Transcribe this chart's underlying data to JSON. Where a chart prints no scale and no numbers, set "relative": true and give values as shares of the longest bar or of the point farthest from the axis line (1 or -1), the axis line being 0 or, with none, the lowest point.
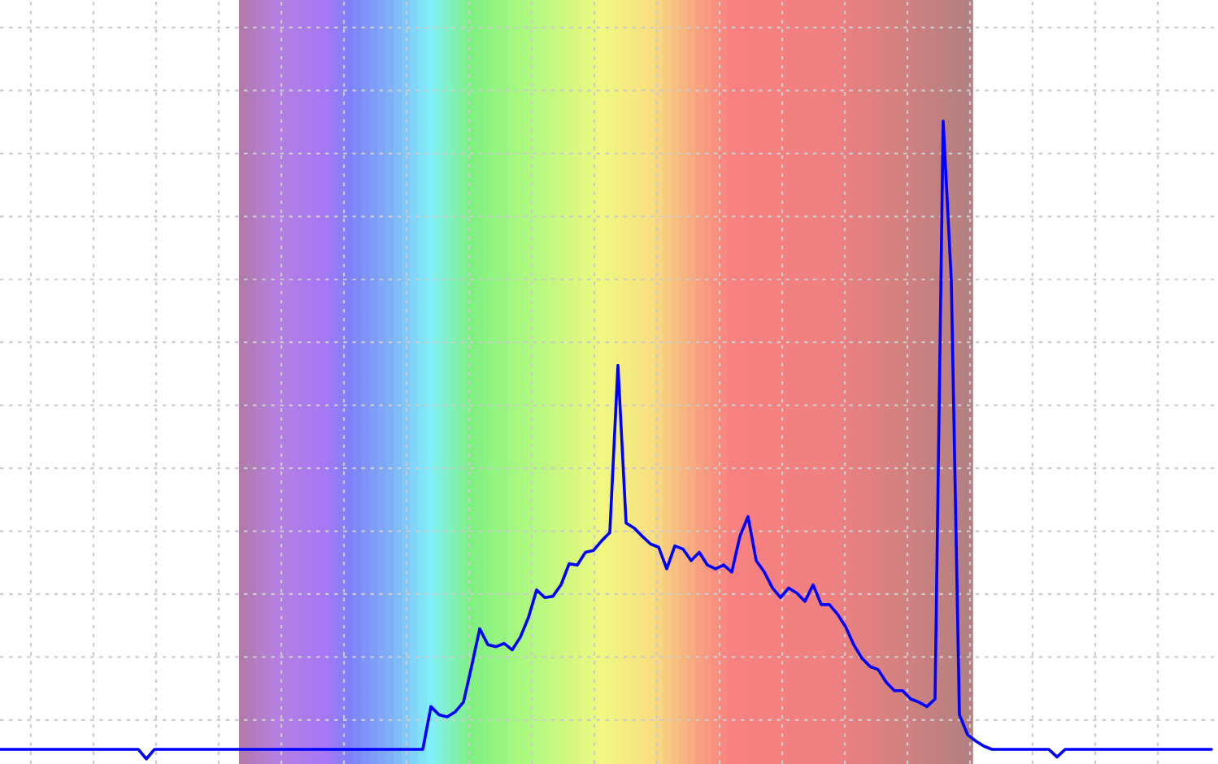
{
  "chart_data": {
    "type": "line",
    "relative": true,
    "grid": true,
    "categories": [
      null,
      null,
      null,
      null,
      null,
      null,
      null,
      null,
      null,
      null,
      null,
      null,
      null,
      null,
      null,
      null,
      null,
      null,
      null,
      null,
      null,
      null,
      null,
      null,
      null,
      null,
      null,
      null,
      null,
      null,
      null,
      null,
      null,
      null,
      null,
      null,
      null,
      null,
      null,
      null,
      null,
      null,
      null,
      null,
      null,
      null,
      null,
      null,
      null,
      null,
      null,
      null,
      null,
      null,
      null,
      null,
      null,
      null,
      null,
      null,
      null,
      null,
      null,
      null,
      null,
      null,
      null,
      null,
      null,
      null,
      null,
      null,
      null,
      null,
      null,
      null,
      null,
      null,
      null,
      null,
      null,
      null,
      null,
      null,
      null,
      null,
      null,
      null,
      null,
      null,
      null,
      null,
      null,
      null,
      null,
      null,
      null,
      null,
      null,
      null,
      null,
      null,
      null,
      null,
      null,
      null,
      null,
      null,
      null,
      null,
      null,
      null,
      null,
      null,
      null,
      null,
      null,
      null,
      null,
      null,
      null,
      null,
      null,
      null,
      null,
      null,
      null,
      null,
      null,
      null,
      null,
      null,
      null,
      null,
      null,
      null,
      null,
      null,
      null,
      null,
      null,
      null,
      null,
      null,
      null,
      null,
      null,
      null,
      null,
      null
    ],
    "series": [
      {
        "color": "#0000ff",
        "values": [
          0.015,
          0.015,
          0.015,
          0.015,
          0.015,
          0.015,
          0.015,
          0.015,
          0.015,
          0.015,
          0.015,
          0.015,
          0.015,
          0.015,
          0.015,
          0.015,
          0.015,
          0.015,
          0,
          0.015,
          0.015,
          0.015,
          0.015,
          0.015,
          0.015,
          0.015,
          0.015,
          0.015,
          0.015,
          0.015,
          0.015,
          0.015,
          0.015,
          0.015,
          0.015,
          0.015,
          0.015,
          0.015,
          0.015,
          0.015,
          0.015,
          0.015,
          0.015,
          0.015,
          0.015,
          0.015,
          0.015,
          0.015,
          0.015,
          0.015,
          0.015,
          0.015,
          0.015,
          0.082,
          0.069,
          0.066,
          0.074,
          0.089,
          0.145,
          0.204,
          0.179,
          0.176,
          0.181,
          0.171,
          0.191,
          0.222,
          0.265,
          0.253,
          0.255,
          0.273,
          0.306,
          0.304,
          0.324,
          0.327,
          0.342,
          0.355,
          0.617,
          0.37,
          0.362,
          0.349,
          0.337,
          0.332,
          0.298,
          0.334,
          0.329,
          0.311,
          0.324,
          0.304,
          0.298,
          0.304,
          0.293,
          0.349,
          0.38,
          0.311,
          0.293,
          0.268,
          0.253,
          0.268,
          0.26,
          0.247,
          0.273,
          0.242,
          0.242,
          0.227,
          0.207,
          0.179,
          0.158,
          0.145,
          0.14,
          0.12,
          0.107,
          0.107,
          0.094,
          0.089,
          0.082,
          0.094,
          1,
          0.75,
          0.069,
          0.038,
          0.028,
          0.02,
          0.015,
          0.015,
          0.015,
          0.015,
          0.015,
          0.015,
          0.015,
          0.015,
          0.003,
          0.015,
          0.015,
          0.015,
          0.015,
          0.015,
          0.015,
          0.015,
          0.015,
          0.015,
          0.015,
          0.015,
          0.015,
          0.015,
          0.015,
          0.015,
          0.015,
          0.015,
          0.015,
          0.015
        ]
      }
    ]
  }
}
